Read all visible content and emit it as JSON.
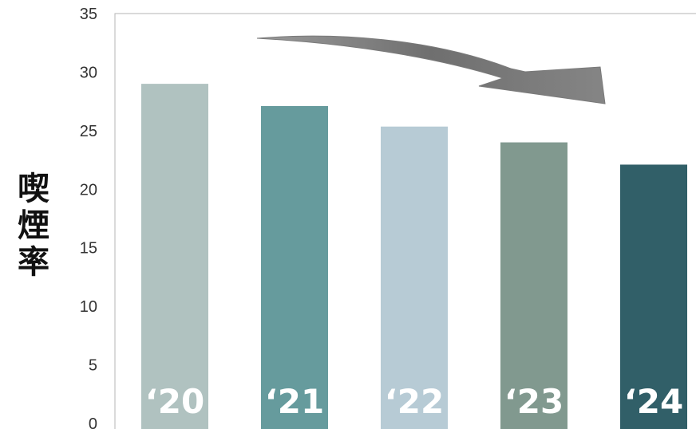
{
  "chart_data": {
    "type": "bar",
    "categories": [
      "‘20",
      "‘21",
      "‘22",
      "‘23",
      "‘24"
    ],
    "values": [
      29,
      27.1,
      25.35,
      24,
      22.1
    ],
    "ylabel": "喫煙率",
    "ylim": [
      0,
      35
    ],
    "yticks": [
      0,
      5,
      10,
      15,
      20,
      25,
      30,
      35
    ],
    "bar_colors": [
      "#b0c2c0",
      "#669b9d",
      "#b7cbd5",
      "#81998f",
      "#315f68"
    ],
    "grid": false,
    "annotation": "downward-trend-arrow"
  }
}
